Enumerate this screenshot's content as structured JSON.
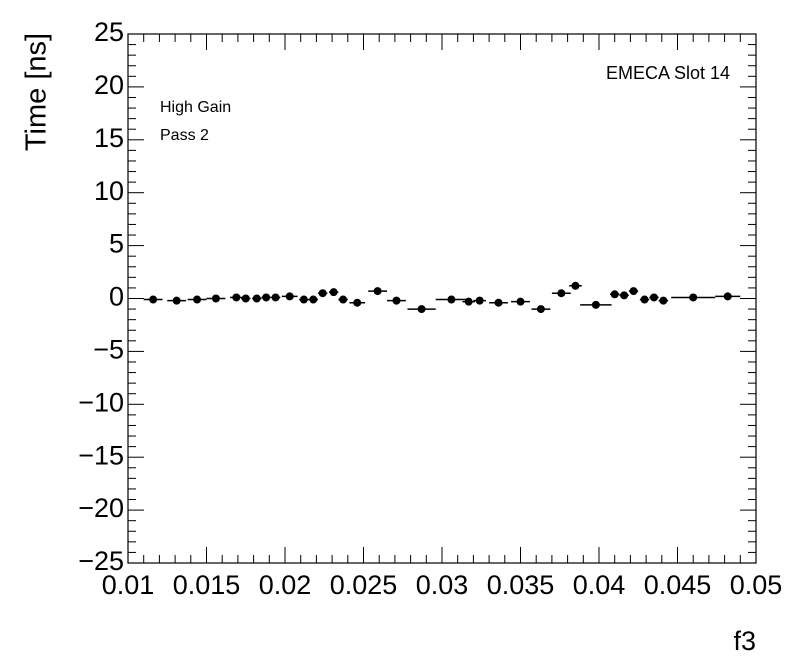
{
  "chart_data": {
    "type": "scatter",
    "xlabel": "f3",
    "ylabel": "Time [ns]",
    "annotations": [
      "EMECA Slot 14",
      "High Gain",
      "Pass 2"
    ],
    "x": [
      0.0116,
      0.0131,
      0.0144,
      0.0156,
      0.0169,
      0.0175,
      0.0182,
      0.0188,
      0.0194,
      0.0203,
      0.0212,
      0.0218,
      0.0224,
      0.0231,
      0.0237,
      0.0246,
      0.0259,
      0.0271,
      0.0287,
      0.0306,
      0.0317,
      0.0324,
      0.0336,
      0.035,
      0.0363,
      0.0376,
      0.0385,
      0.0398,
      0.041,
      0.0416,
      0.0422,
      0.0429,
      0.0435,
      0.0441,
      0.046,
      0.0482
    ],
    "x_err": [
      0.0006,
      0.0006,
      0.0006,
      0.0006,
      0.0004,
      0.0003,
      0.0003,
      0.0003,
      0.0003,
      0.0005,
      0.0003,
      0.0003,
      0.0003,
      0.0003,
      0.0003,
      0.0005,
      0.0006,
      0.0006,
      0.0009,
      0.001,
      0.0004,
      0.0004,
      0.0006,
      0.0006,
      0.0006,
      0.0006,
      0.0004,
      0.001,
      0.0003,
      0.0003,
      0.0003,
      0.0003,
      0.0003,
      0.0003,
      0.0014,
      0.0008
    ],
    "values": [
      -0.1,
      -0.2,
      -0.1,
      0,
      0.1,
      0,
      0,
      0.1,
      0.1,
      0.2,
      -0.1,
      -0.1,
      0.5,
      0.6,
      -0.1,
      -0.4,
      0.7,
      -0.2,
      -1.0,
      -0.1,
      -0.3,
      -0.2,
      -0.4,
      -0.3,
      -1.0,
      0.5,
      1.2,
      -0.6,
      0.4,
      0.3,
      0.7,
      -0.1,
      0.1,
      -0.2,
      0.1,
      0.2
    ],
    "color": "#000000",
    "xlim": [
      0.01,
      0.05
    ],
    "xticks": [
      0.01,
      0.015,
      0.02,
      0.025,
      0.03,
      0.035,
      0.04,
      0.045,
      0.05
    ],
    "ylim": [
      -25,
      25
    ],
    "yticks": [
      {
        "value": -25,
        "label": "−25"
      },
      {
        "value": -20,
        "label": "−20"
      },
      {
        "value": -15,
        "label": "−15"
      },
      {
        "value": -10,
        "label": "−10"
      },
      {
        "value": -5,
        "label": "−5"
      },
      0,
      5,
      10,
      15,
      20,
      25
    ]
  }
}
